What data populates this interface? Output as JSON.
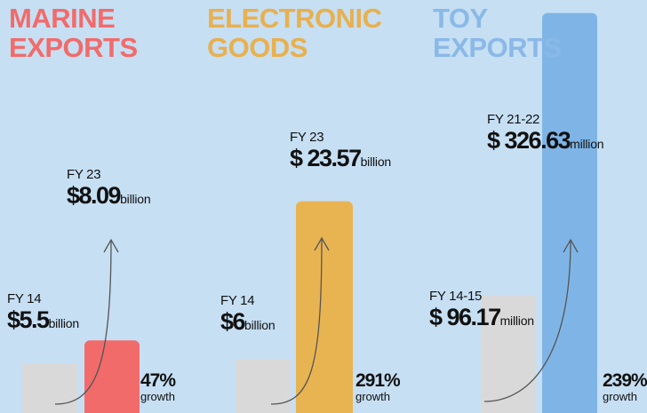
{
  "chart_data": [
    {
      "type": "bar",
      "title": "MARINE EXPORTS",
      "title_color": "#f26b6b",
      "categories": [
        "FY 14",
        "FY 23"
      ],
      "values": [
        5.5,
        8.09
      ],
      "value_labels": [
        "$5.5",
        "$8.09"
      ],
      "unit": "billion",
      "colors": [
        "#d9d9d9",
        "#f26b6b"
      ],
      "ylim": [
        0,
        45
      ],
      "growth": {
        "value": 47,
        "label": "47%"
      },
      "growth_text": "growth"
    },
    {
      "type": "bar",
      "title": "ELECTRONIC GOODS",
      "title_color": "#e8b04e",
      "categories": [
        "FY 14",
        "FY 23"
      ],
      "values": [
        6,
        23.57
      ],
      "value_labels": [
        "$6",
        "$ 23.57"
      ],
      "unit": "billion",
      "colors": [
        "#d9d9d9",
        "#e8b452"
      ],
      "ylim": [
        0,
        45
      ],
      "growth": {
        "value": 291,
        "label": "291%"
      },
      "growth_text": "growth"
    },
    {
      "type": "bar",
      "title": "TOY EXPORTS",
      "title_color": "#8ab9e8",
      "categories": [
        "FY 14-15",
        "FY 21-22"
      ],
      "values": [
        96.17,
        326.63
      ],
      "value_labels": [
        "$ 96.17",
        "$ 326.63"
      ],
      "unit": "million",
      "colors": [
        "#d9d9d9",
        "#7fb5e6"
      ],
      "ylim": [
        0,
        330
      ],
      "growth": {
        "value": 239,
        "label": "239%"
      },
      "growth_text": "growth"
    }
  ]
}
